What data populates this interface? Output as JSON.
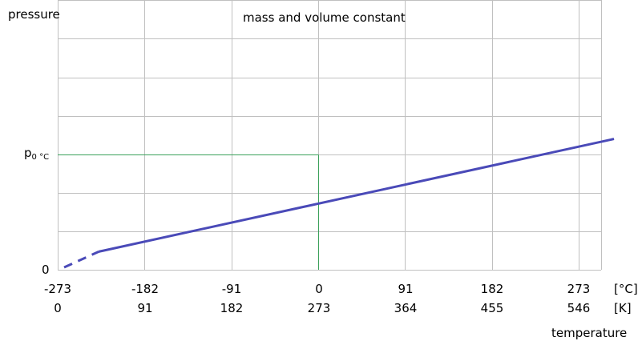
{
  "chart_data": {
    "type": "line",
    "title": "mass and volume constant",
    "ylabel": "pressure",
    "xlabel": "temperature",
    "x_units": {
      "celsius": "[°C]",
      "kelvin": "[K]"
    },
    "x_ticks_celsius": [
      "-273",
      "-182",
      "-91",
      "0",
      "91",
      "182",
      "273"
    ],
    "x_ticks_kelvin": [
      "0",
      "91",
      "182",
      "273",
      "364",
      "455",
      "546"
    ],
    "xlim_celsius": [
      -273,
      322
    ],
    "y_ticks": [
      {
        "label_main": "0",
        "label_sub": ""
      },
      {
        "label_main": "p",
        "label_sub": "0 °C"
      }
    ],
    "y_reference_value": 1,
    "ylim": [
      0,
      2.0
    ],
    "series": [
      {
        "values": [
          [
            -273,
            0
          ],
          [
            -230,
            0.157
          ],
          [
            310,
            1.135
          ]
        ],
        "extrapolated_until": -230,
        "color": "#4a4ab8"
      }
    ],
    "reference_lines": {
      "x_celsius": 0,
      "y": 1,
      "color": "#3aa05a"
    },
    "grid": true,
    "grid_color": "#c0c0c0"
  }
}
